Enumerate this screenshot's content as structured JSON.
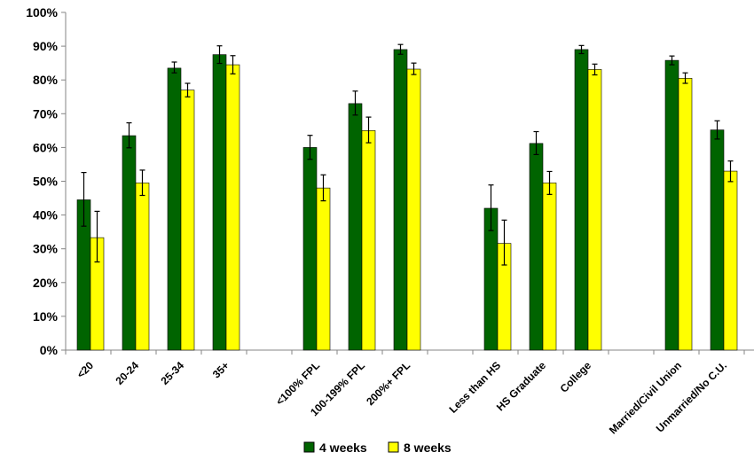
{
  "chart_data": {
    "type": "bar",
    "title": "",
    "xlabel": "",
    "ylabel": "",
    "ylim": [
      0,
      100
    ],
    "yticks": [
      "0%",
      "10%",
      "20%",
      "30%",
      "40%",
      "50%",
      "60%",
      "70%",
      "80%",
      "90%",
      "100%"
    ],
    "grid": false,
    "legend_position": "bottom",
    "colors": {
      "4 weeks": "#006400",
      "8 weeks": "#ffff00",
      "bar_outline": "#000000",
      "axis": "#868686"
    },
    "categories": [
      "<20",
      "20-24",
      "25-34",
      "35+",
      "",
      "<100% FPL",
      "100-199% FPL",
      "200%+ FPL",
      "",
      "Less than HS",
      "HS Graduate",
      "College",
      "",
      "Married/Civil Union",
      "Unmarried/No C.U."
    ],
    "series": [
      {
        "name": "4 weeks",
        "values": [
          44.5,
          63.5,
          83.5,
          87.5,
          null,
          60,
          73,
          89,
          null,
          42,
          61.2,
          89,
          null,
          85.8,
          65.2
        ],
        "error_low": [
          36.7,
          59.9,
          82.1,
          84.9,
          null,
          56.5,
          69.6,
          87.6,
          null,
          35.4,
          57.9,
          87.8,
          null,
          84.5,
          62.5
        ],
        "error_high": [
          52.6,
          67.3,
          85.3,
          90.1,
          null,
          63.6,
          76.7,
          90.5,
          null,
          48.9,
          64.7,
          90.2,
          null,
          87.1,
          67.9
        ]
      },
      {
        "name": "8 weeks",
        "values": [
          33.3,
          49.5,
          77,
          84.5,
          null,
          48,
          65,
          83.2,
          null,
          31.6,
          49.5,
          83.1,
          null,
          80.5,
          53
        ],
        "error_low": [
          26.1,
          45.8,
          75,
          81.8,
          null,
          44.2,
          61.4,
          81.6,
          null,
          25.2,
          46.1,
          81.5,
          null,
          79,
          49.9
        ],
        "error_high": [
          41.1,
          53.3,
          79,
          87.2,
          null,
          51.9,
          69,
          85,
          null,
          38.5,
          52.9,
          84.7,
          null,
          82.1,
          56
        ]
      }
    ]
  }
}
